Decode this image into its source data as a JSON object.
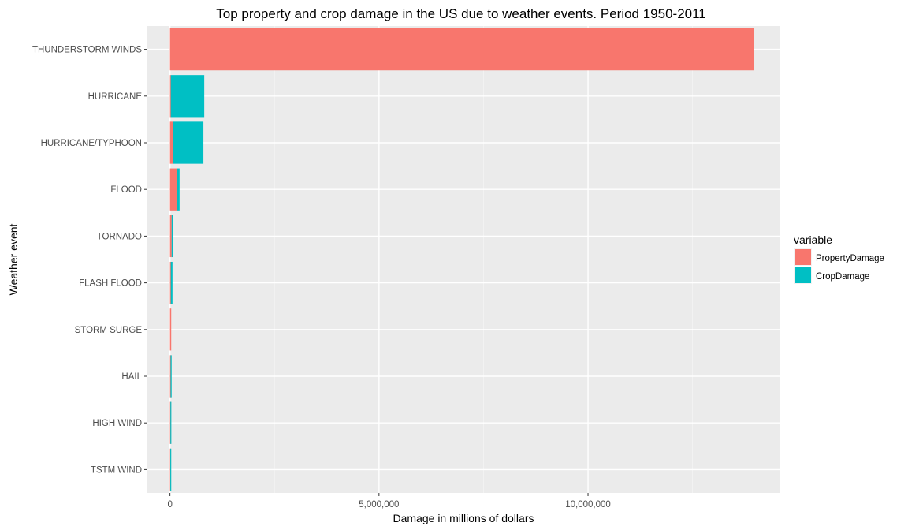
{
  "chart_data": {
    "type": "bar",
    "orientation": "horizontal",
    "stacked": true,
    "title": "Top property and crop damage in the US due to weather events. Period 1950-2011",
    "xlabel": "Damage in millions of dollars",
    "ylabel": "Weather event",
    "xlim": [
      -540000,
      14600000
    ],
    "x_ticks": [
      0,
      5000000,
      10000000
    ],
    "x_tick_labels": [
      "0",
      "5,000,000",
      "10,000,000"
    ],
    "grid": true,
    "legend_position": "right",
    "legend_title": "variable",
    "categories": [
      "THUNDERSTORM WINDS",
      "HURRICANE",
      "HURRICANE/TYPHOON",
      "FLOOD",
      "TORNADO",
      "FLASH FLOOD",
      "STORM SURGE",
      "HAIL",
      "HIGH WIND",
      "TSTM WIND"
    ],
    "series": [
      {
        "name": "PropertyDamage",
        "color": "#F8766D",
        "values": [
          13960000,
          20000,
          80000,
          160000,
          40000,
          20000,
          30000,
          15000,
          10000,
          8000
        ]
      },
      {
        "name": "CropDamage",
        "color": "#00BFC4",
        "values": [
          0,
          800000,
          720000,
          70000,
          40000,
          40000,
          0,
          25000,
          15000,
          10000
        ]
      }
    ]
  }
}
